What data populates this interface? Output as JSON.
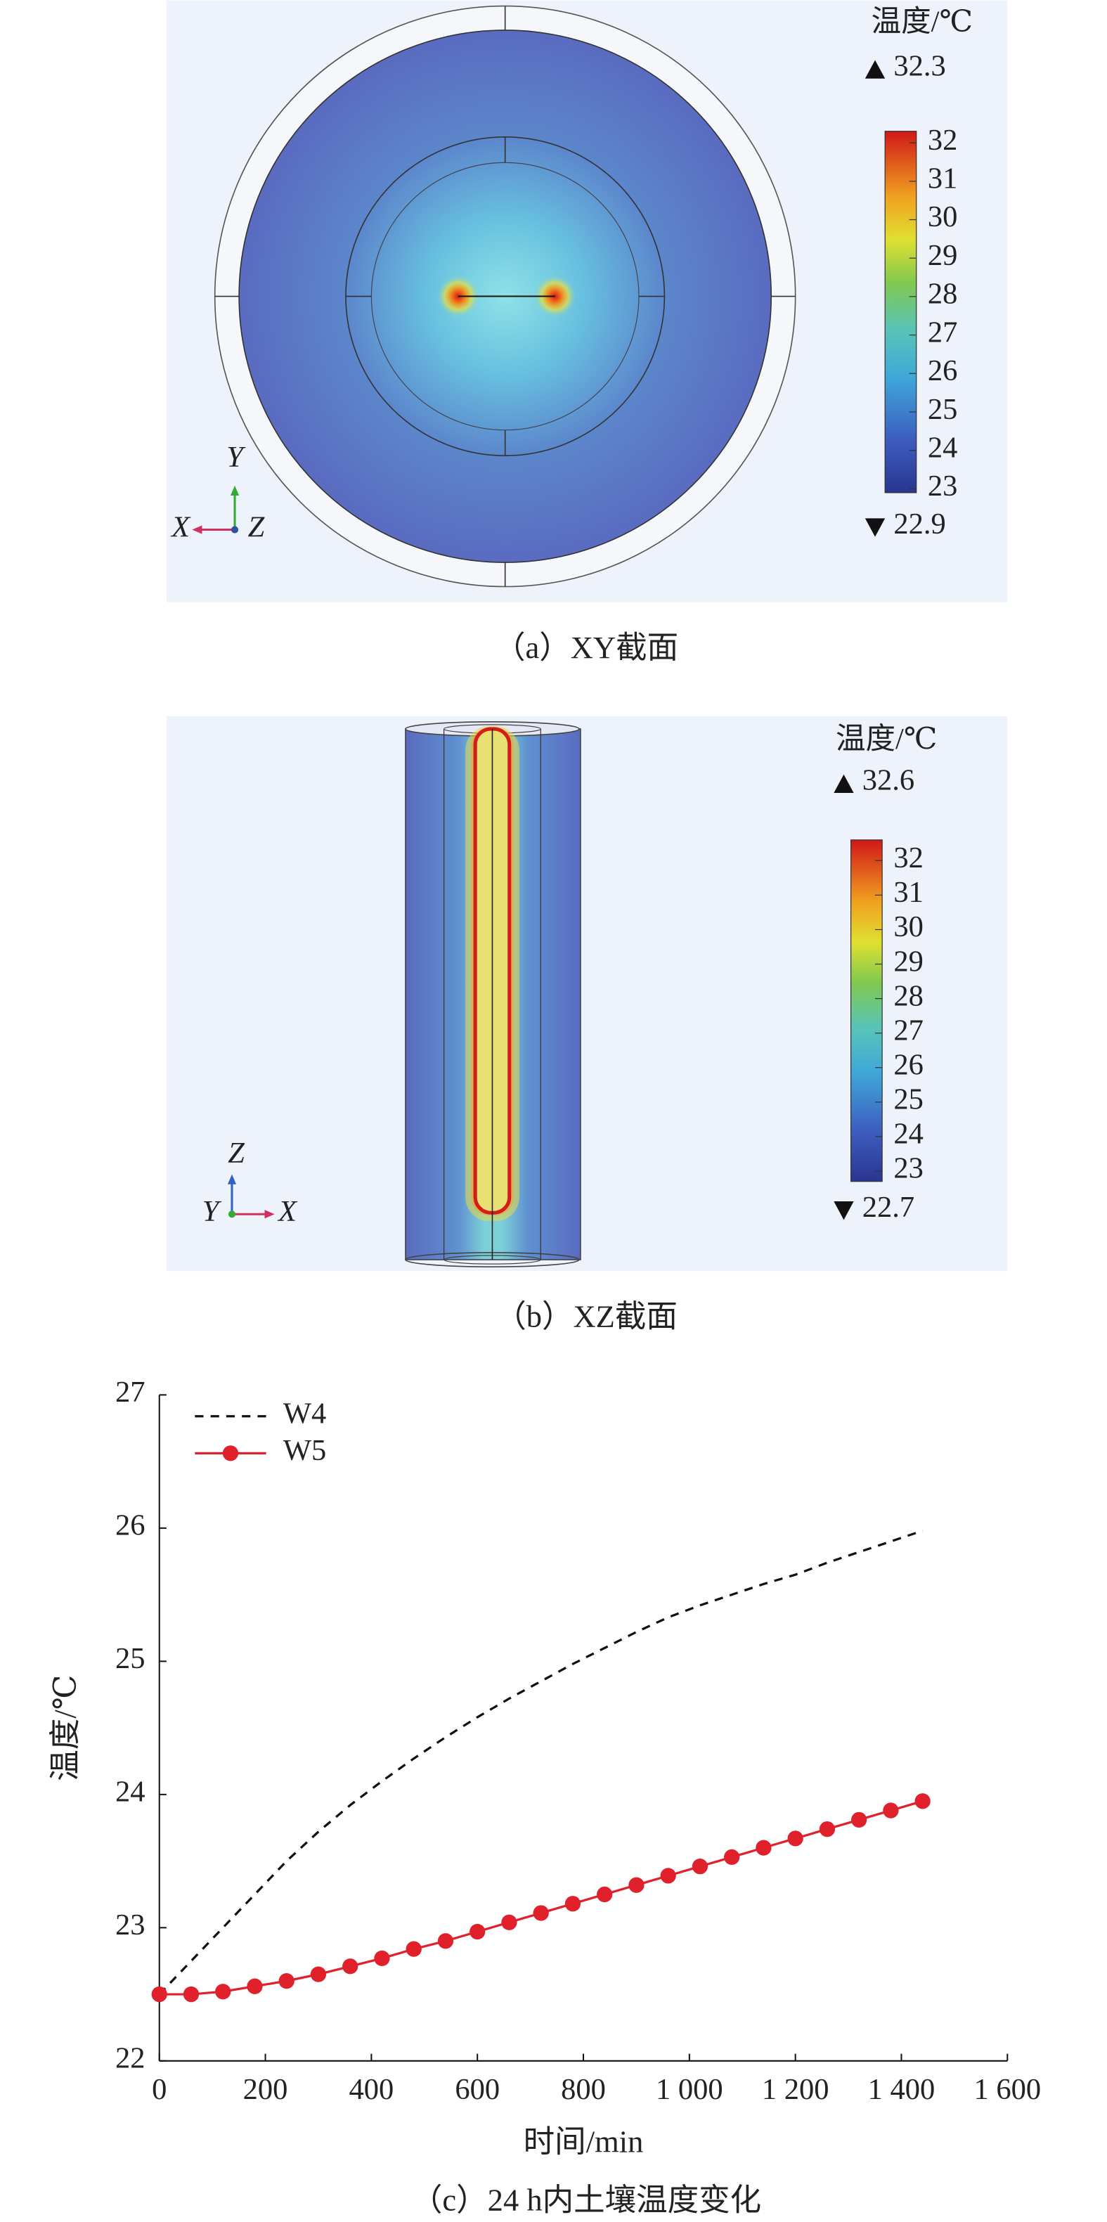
{
  "chart_data": [
    {
      "type": "field",
      "legend_title": "温度/℃",
      "max": 32.3,
      "min": 22.9,
      "colorbar_ticks": [
        23,
        24,
        25,
        26,
        27,
        28,
        29,
        30,
        31,
        32
      ],
      "axis_labels": [
        "Y",
        "X",
        "Z"
      ],
      "caption": "（a）XY截面"
    },
    {
      "type": "field",
      "legend_title": "温度/℃",
      "max": 32.6,
      "min": 22.7,
      "colorbar_ticks": [
        23,
        24,
        25,
        26,
        27,
        28,
        29,
        30,
        31,
        32
      ],
      "axis_labels": [
        "Z",
        "Y",
        "X"
      ],
      "caption": "（b）XZ截面"
    },
    {
      "type": "line",
      "xlabel": "时间/min",
      "ylabel": "温度/℃",
      "caption": "（c）24 h内土壤温度变化",
      "xlim": [
        0,
        1600
      ],
      "xticks": [
        0,
        200,
        400,
        600,
        800,
        {
          "value": 1000,
          "label": "1 000"
        },
        {
          "value": 1200,
          "label": "1 200"
        },
        {
          "value": 1400,
          "label": "1 400"
        },
        {
          "value": 1600,
          "label": "1 600"
        }
      ],
      "ylim": [
        22,
        27
      ],
      "yticks": [
        22,
        23,
        24,
        25,
        26,
        27
      ],
      "legend": "upper left",
      "x": [
        0,
        60,
        120,
        180,
        240,
        300,
        360,
        420,
        480,
        540,
        600,
        660,
        720,
        780,
        840,
        900,
        960,
        1020,
        1080,
        1140,
        1200,
        1260,
        1320,
        1380,
        1440
      ],
      "series": [
        {
          "name": "W4",
          "color": "#111111",
          "style": "dashed",
          "values": [
            22.5,
            22.75,
            23.0,
            23.25,
            23.5,
            23.72,
            23.92,
            24.1,
            24.27,
            24.43,
            24.58,
            24.72,
            24.85,
            24.98,
            25.1,
            25.22,
            25.33,
            25.42,
            25.5,
            25.58,
            25.65,
            25.74,
            25.82,
            25.9,
            25.98
          ]
        },
        {
          "name": "W5",
          "color": "#e0202a",
          "marker": "circle",
          "values": [
            22.5,
            22.5,
            22.52,
            22.56,
            22.6,
            22.65,
            22.71,
            22.77,
            22.84,
            22.9,
            22.97,
            23.04,
            23.11,
            23.18,
            23.25,
            23.32,
            23.39,
            23.46,
            23.53,
            23.6,
            23.67,
            23.74,
            23.81,
            23.88,
            23.95
          ]
        }
      ]
    }
  ]
}
